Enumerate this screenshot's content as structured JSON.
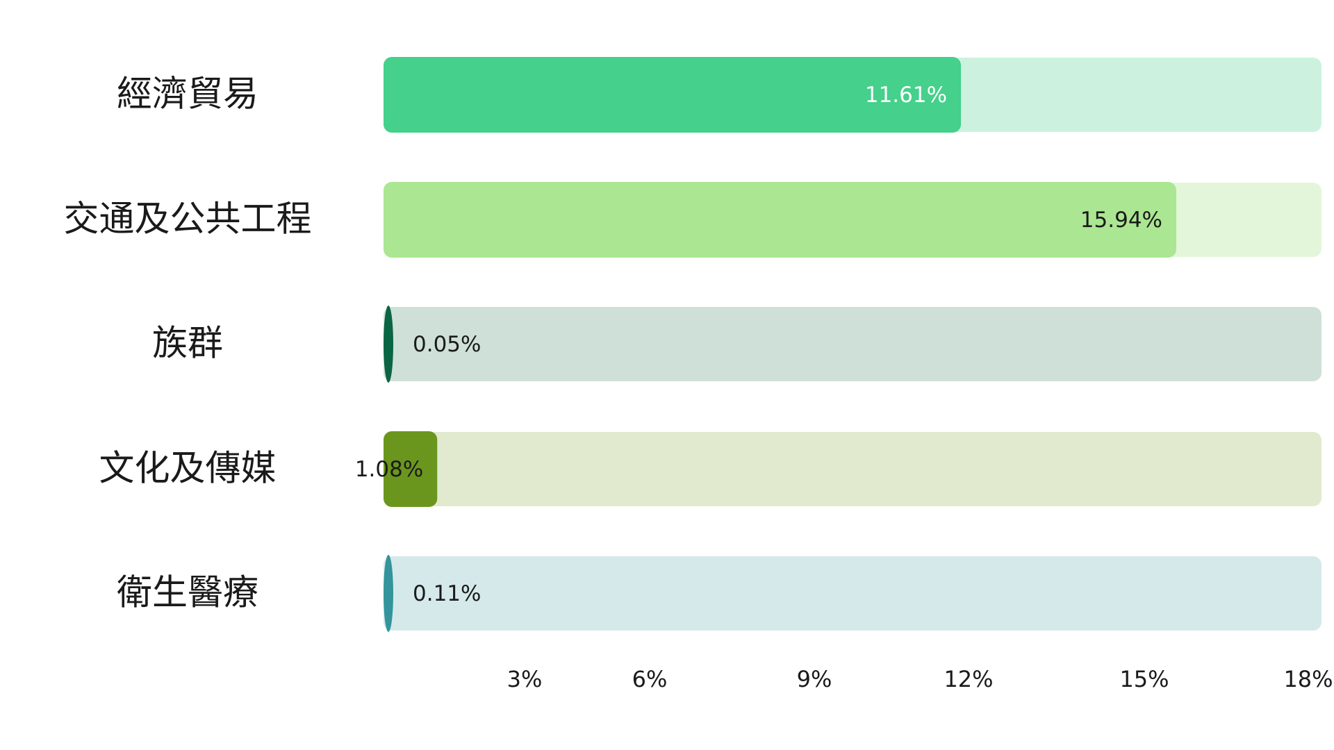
{
  "chart_data": {
    "type": "bar",
    "orientation": "horizontal",
    "title": "",
    "xlabel": "",
    "ylabel": "",
    "xlim": [
      0,
      18
    ],
    "grid": false,
    "legend": "none",
    "categories": [
      "經濟貿易",
      "交通及公共工程",
      "族群",
      "文化及傳媒",
      "衛生醫療"
    ],
    "values": [
      11.61,
      15.94,
      0.05,
      1.08,
      0.11
    ],
    "value_labels": [
      "11.61%",
      "15.94%",
      "0.05%",
      "1.08%",
      "0.11%"
    ],
    "x_ticks": [
      3,
      6,
      9,
      12,
      15,
      18
    ],
    "x_tick_labels": [
      "3%",
      "6%",
      "9%",
      "12%",
      "15%",
      "18%"
    ],
    "colors": {
      "bars": [
        "#45d08b",
        "#abe692",
        "#0a6544",
        "#6b961e",
        "#33959b"
      ],
      "tracks": [
        "#ccf2df",
        "#e3f6d9",
        "#cfe0d9",
        "#e1eacf",
        "#d5e9ea"
      ],
      "value_label_colors": [
        "#ffffff",
        "#1a1a1a",
        "#1a1a1a",
        "#1a1a1a",
        "#1a1a1a"
      ]
    }
  }
}
